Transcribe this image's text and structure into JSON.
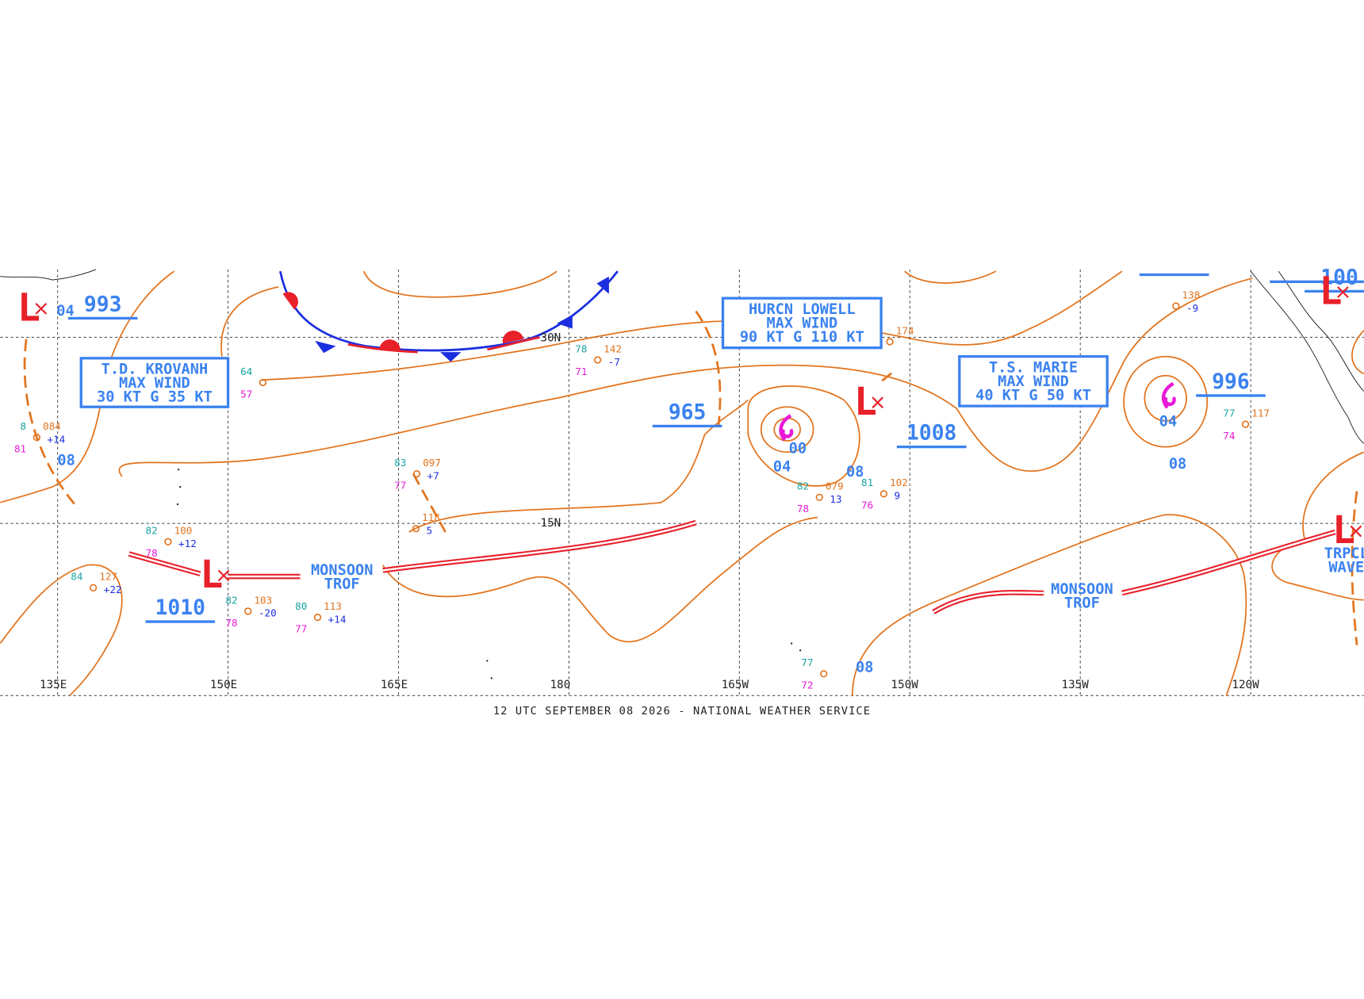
{
  "map": {
    "footer": "12 UTC SEPTEMBER 08 2026 - NATIONAL WEATHER SERVICE",
    "longitude_labels": [
      "135E",
      "150E",
      "165E",
      "180",
      "165W",
      "150W",
      "135W",
      "120W"
    ],
    "latitude_labels": [
      "30N",
      "15N"
    ],
    "storm_boxes": [
      {
        "lines": [
          "T.D. KROVANH",
          "MAX WIND",
          "30 KT G 35 KT"
        ]
      },
      {
        "lines": [
          "HURCN LOWELL",
          "MAX WIND",
          "90 KT G 110 KT"
        ]
      },
      {
        "lines": [
          "T.S. MARIE",
          "MAX WIND",
          "40 KT G 50 KT"
        ]
      }
    ],
    "pressure_centers": [
      "993",
      "965",
      "1008",
      "996",
      "1010",
      "100"
    ],
    "contour_labels": [
      "04",
      "08",
      "00",
      "04",
      "08",
      "04",
      "08",
      "08"
    ],
    "feature_labels": [
      [
        "MONSOON",
        "TROF"
      ],
      [
        "MONSOON",
        "TROF"
      ],
      [
        "TRPCL",
        "WAVE"
      ]
    ],
    "low_symbol": "L",
    "stations": [
      {
        "temp": "78",
        "pressure": "142",
        "tendency": "-7",
        "dewpoint": "71"
      },
      {
        "temp": "83",
        "pressure": "097",
        "tendency": "+7",
        "dewpoint": "77"
      },
      {
        "temp": "64",
        "dewpoint": "57"
      },
      {
        "temp": "82",
        "pressure": "100",
        "tendency": "+12",
        "dewpoint": "78"
      },
      {
        "temp": "84",
        "pressure": "127",
        "tendency": "+22"
      },
      {
        "temp": "82",
        "pressure": "103",
        "tendency": "-20",
        "dewpoint": "78"
      },
      {
        "temp": "80",
        "pressure": "113",
        "tendency": "+14",
        "dewpoint": "77"
      },
      {
        "temp": "82",
        "pressure": "079",
        "tendency": "13",
        "dewpoint": "78"
      },
      {
        "temp": "81",
        "pressure": "102",
        "tendency": "9",
        "dewpoint": "76"
      },
      {
        "temp": "77",
        "dewpoint": "72"
      },
      {
        "pressure": "138",
        "tendency": "-9"
      },
      {
        "temp": "77",
        "pressure": "117",
        "dewpoint": "74"
      },
      {
        "temp": "8",
        "pressure": "084",
        "tendency": "+14",
        "dewpoint": "81"
      },
      {
        "pressure": "174"
      },
      {
        "pressure": "118",
        "tendency": "5"
      }
    ]
  }
}
